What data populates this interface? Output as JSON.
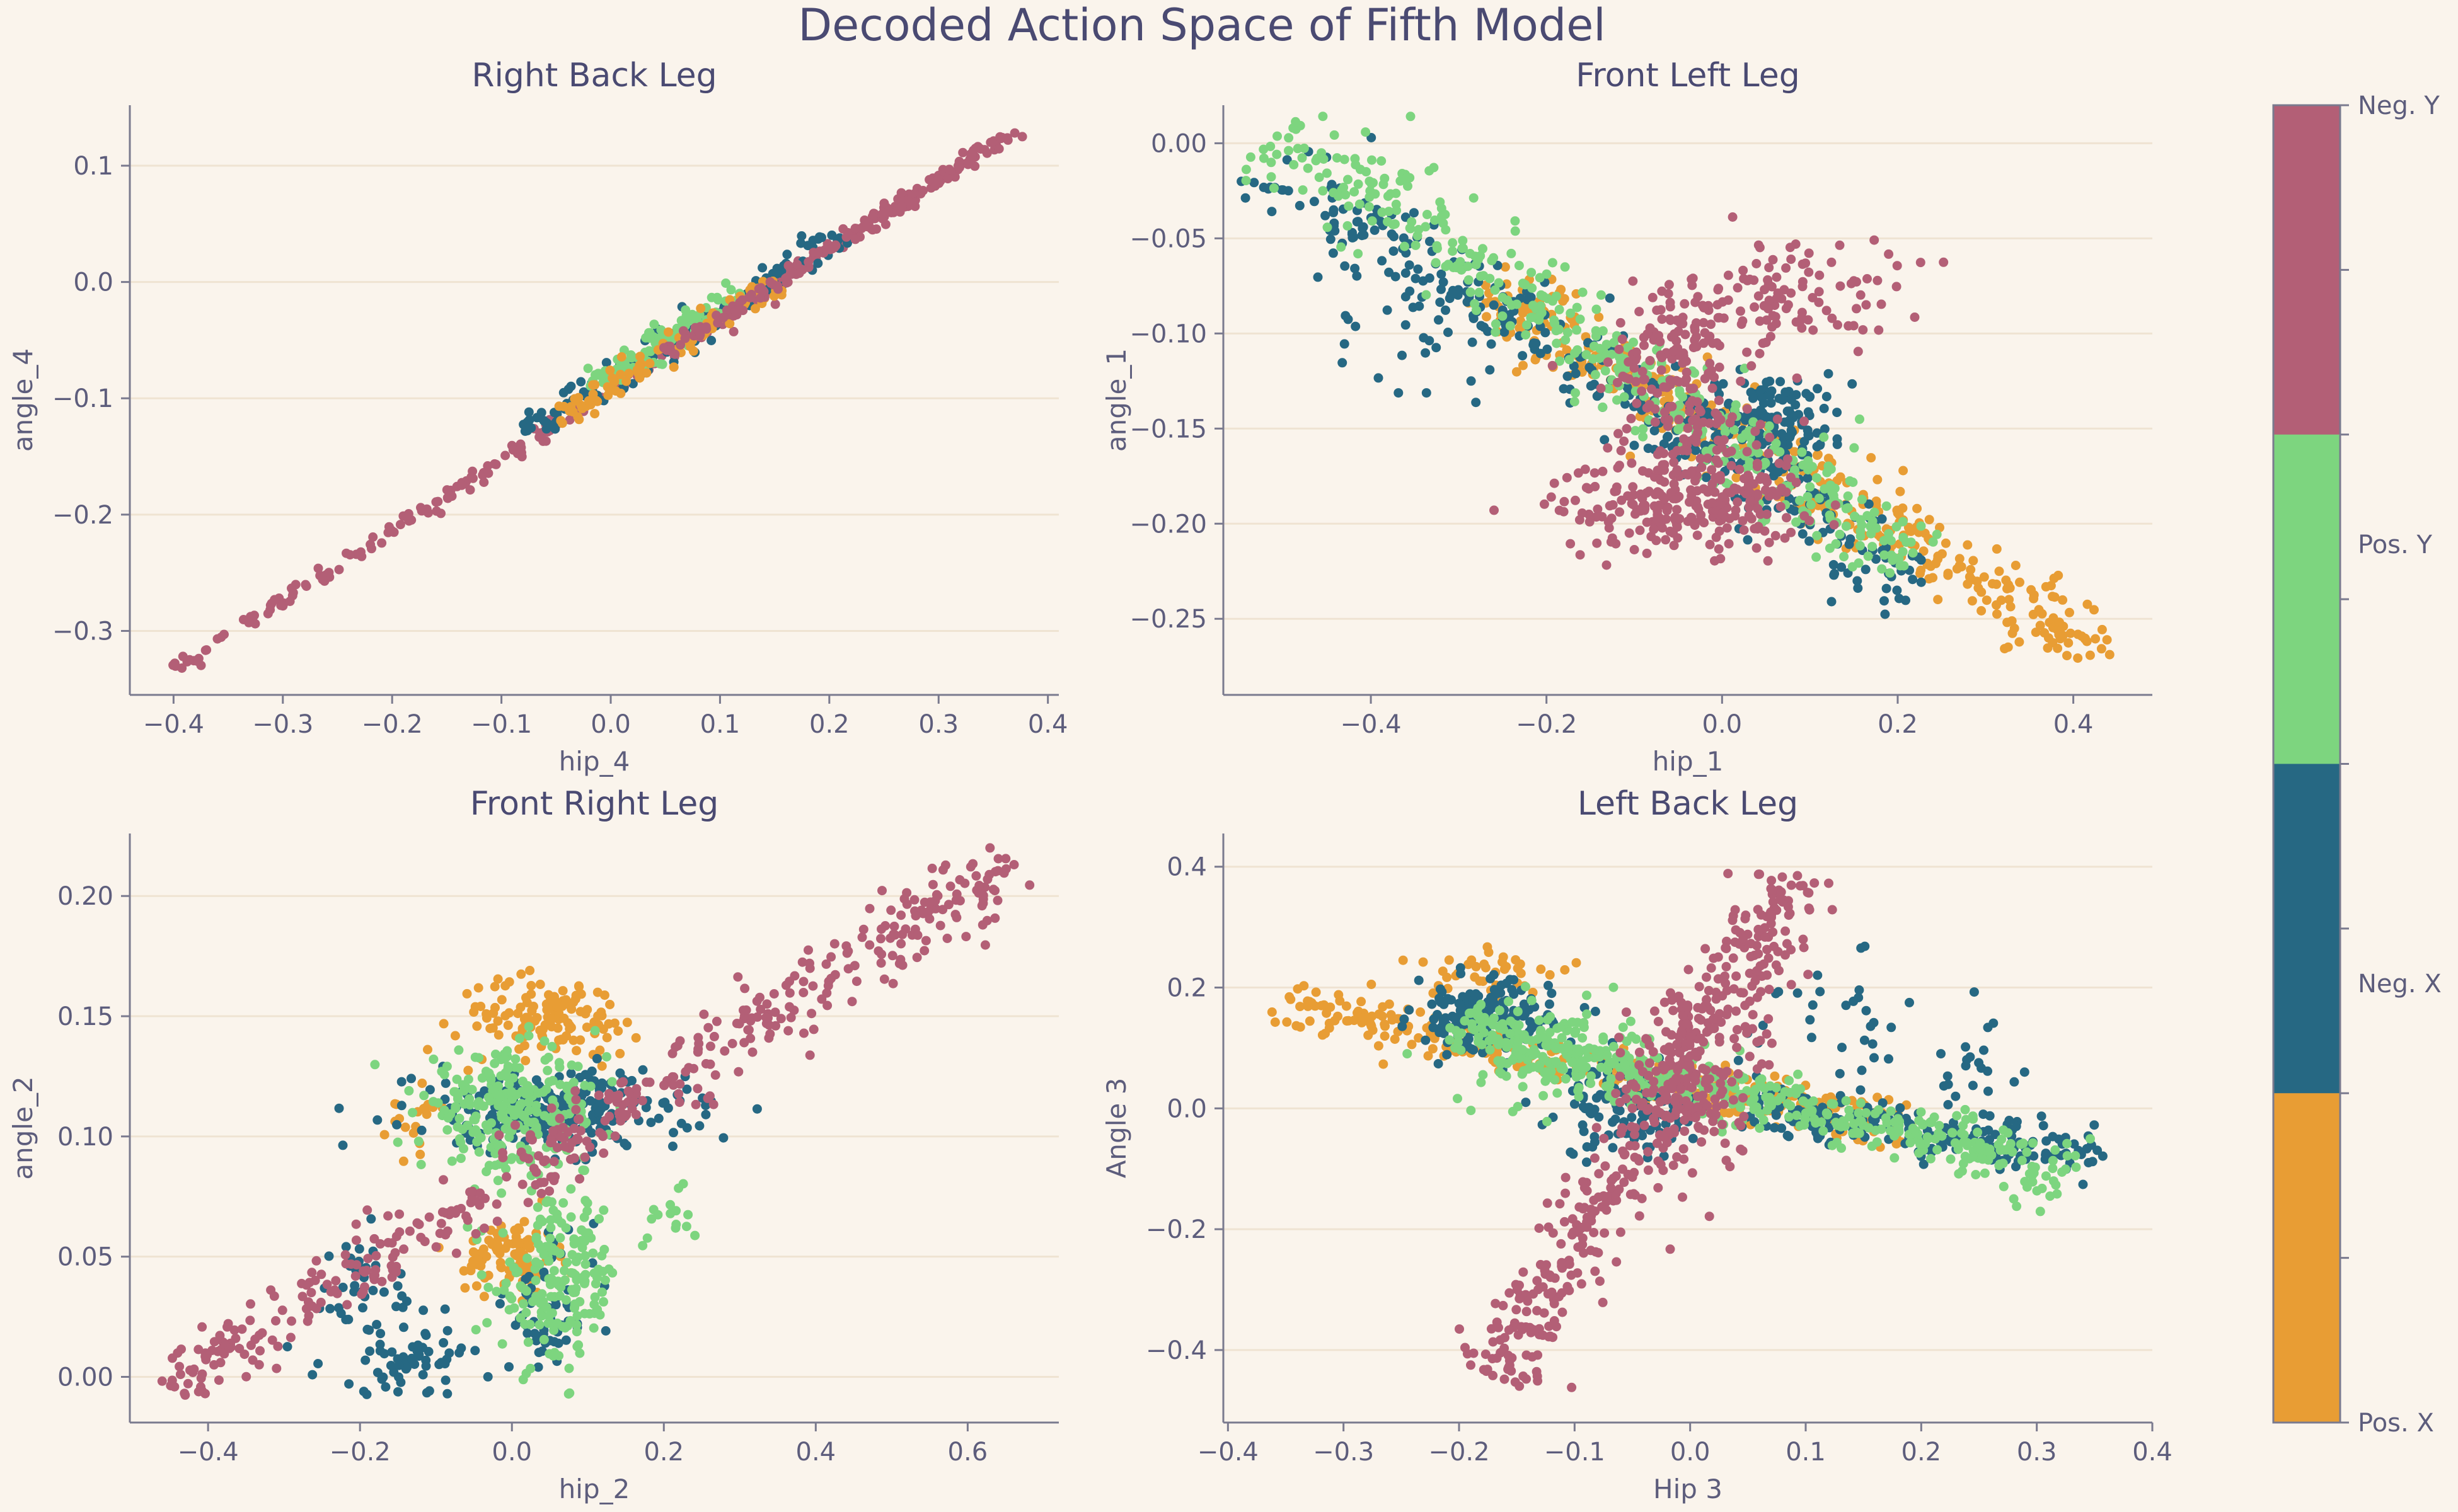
{
  "figure": {
    "title": "Decoded Action Space of Fifth Model"
  },
  "colors": {
    "Neg. Y": "#b35f76",
    "Pos. Y": "#7dd57f",
    "Neg. X": "#266883",
    "Pos. X": "#e89d34",
    "background": "#faf4ec",
    "axis": "#7a7a8e",
    "grid": "#efe3d2"
  },
  "colorbar": {
    "labels": [
      "Neg. Y",
      "Pos. Y",
      "Neg. X",
      "Pos. X"
    ],
    "order_top_to_bottom": [
      "Neg. Y",
      "Pos. Y",
      "Neg. X",
      "Pos. X"
    ]
  },
  "chart_data": [
    {
      "type": "scatter",
      "title": "Right Back Leg",
      "xlabel": "hip_4",
      "ylabel": "angle_4",
      "xlim": [
        -0.44,
        0.41
      ],
      "ylim": [
        -0.355,
        0.152
      ],
      "xticks": [
        -0.4,
        -0.3,
        -0.2,
        -0.1,
        0.0,
        0.1,
        0.2,
        0.3,
        0.4
      ],
      "yticks": [
        -0.3,
        -0.2,
        -0.1,
        0.0,
        0.1
      ],
      "xtick_labels": [
        "−0.4",
        "−0.3",
        "−0.2",
        "−0.1",
        "0.0",
        "0.1",
        "0.2",
        "0.3",
        "0.4"
      ],
      "ytick_labels": [
        "−0.3",
        "−0.2",
        "−0.1",
        "0.0",
        "0.1"
      ],
      "grid": "horizontal",
      "series": [
        {
          "name": "Neg. Y",
          "clusters": [
            {
              "type": "line",
              "x0": -0.4,
              "y0": -0.333,
              "x1": 0.35,
              "y1": 0.118,
              "n": 260,
              "spread": 0.003
            }
          ]
        },
        {
          "name": "Neg. X",
          "clusters": [
            {
              "type": "line",
              "x0": -0.08,
              "y0": -0.13,
              "x1": 0.21,
              "y1": 0.04,
              "n": 130,
              "spread": 0.006
            }
          ]
        },
        {
          "name": "Pos. Y",
          "clusters": [
            {
              "type": "line",
              "x0": -0.02,
              "y0": -0.09,
              "x1": 0.12,
              "y1": -0.01,
              "n": 110,
              "spread": 0.006
            }
          ]
        },
        {
          "name": "Pos. X",
          "clusters": [
            {
              "type": "line",
              "x0": -0.05,
              "y0": -0.12,
              "x1": 0.15,
              "y1": 0.0,
              "n": 100,
              "spread": 0.005
            }
          ]
        },
        {
          "name": "Neg. Y",
          "clusters": [
            {
              "type": "line",
              "x0": 0.05,
              "y0": -0.06,
              "x1": 0.37,
              "y1": 0.13,
              "n": 140,
              "spread": 0.003
            }
          ]
        }
      ]
    },
    {
      "type": "scatter",
      "title": "Front Left Leg",
      "xlabel": "hip_1",
      "ylabel": "angle_1",
      "xlim": [
        -0.568,
        0.49
      ],
      "ylim": [
        -0.29,
        0.02
      ],
      "xticks": [
        -0.4,
        -0.2,
        0.0,
        0.2,
        0.4
      ],
      "yticks": [
        -0.25,
        -0.2,
        -0.15,
        -0.1,
        -0.05,
        0.0
      ],
      "xtick_labels": [
        "−0.4",
        "−0.2",
        "0.0",
        "0.2",
        "0.4"
      ],
      "ytick_labels": [
        "−0.25",
        "−0.20",
        "−0.15",
        "−0.10",
        "−0.05",
        "0.00"
      ],
      "grid": "horizontal",
      "series": [
        {
          "name": "Pos. X",
          "clusters": [
            {
              "type": "line",
              "x0": -0.28,
              "y0": -0.075,
              "x1": 0.44,
              "y1": -0.27,
              "n": 380,
              "spread": 0.008
            }
          ]
        },
        {
          "name": "Neg. X",
          "clusters": [
            {
              "type": "line",
              "x0": -0.52,
              "y0": -0.01,
              "x1": 0.23,
              "y1": -0.235,
              "n": 300,
              "spread": 0.01
            },
            {
              "type": "blob",
              "cx": 0.05,
              "cy": -0.145,
              "sx": 0.05,
              "sy": 0.012,
              "n": 160
            },
            {
              "type": "blob",
              "cx": -0.32,
              "cy": -0.09,
              "sx": 0.06,
              "sy": 0.02,
              "n": 40
            }
          ]
        },
        {
          "name": "Pos. Y",
          "clusters": [
            {
              "type": "line",
              "x0": -0.51,
              "y0": 0.005,
              "x1": 0.22,
              "y1": -0.22,
              "n": 420,
              "spread": 0.01
            }
          ]
        },
        {
          "name": "Neg. Y",
          "clusters": [
            {
              "type": "blob",
              "cx": -0.05,
              "cy": -0.19,
              "sx": 0.07,
              "sy": 0.012,
              "n": 220
            },
            {
              "type": "line",
              "x0": -0.1,
              "y0": -0.1,
              "x1": 0.03,
              "y1": -0.19,
              "n": 160,
              "spread": 0.012
            },
            {
              "type": "blob",
              "cx": 0.08,
              "cy": -0.08,
              "sx": 0.06,
              "sy": 0.015,
              "n": 110
            },
            {
              "type": "blob",
              "cx": -0.05,
              "cy": -0.1,
              "sx": 0.04,
              "sy": 0.015,
              "n": 60
            }
          ]
        }
      ]
    },
    {
      "type": "scatter",
      "title": "Front Right Leg",
      "xlabel": "hip_2",
      "ylabel": "angle_2",
      "xlim": [
        -0.503,
        0.72
      ],
      "ylim": [
        -0.019,
        0.226
      ],
      "xticks": [
        -0.4,
        -0.2,
        0.0,
        0.2,
        0.4,
        0.6
      ],
      "yticks": [
        0.0,
        0.05,
        0.1,
        0.15,
        0.2
      ],
      "xtick_labels": [
        "−0.4",
        "−0.2",
        "0.0",
        "0.2",
        "0.4",
        "0.6"
      ],
      "ytick_labels": [
        "0.00",
        "0.05",
        "0.10",
        "0.15",
        "0.20"
      ],
      "grid": "horizontal",
      "series": [
        {
          "name": "Pos. X",
          "clusters": [
            {
              "type": "blob",
              "cx": 0.05,
              "cy": 0.15,
              "sx": 0.06,
              "sy": 0.008,
              "n": 130
            },
            {
              "type": "blob",
              "cx": 0.0,
              "cy": 0.05,
              "sx": 0.03,
              "sy": 0.008,
              "n": 90
            },
            {
              "type": "blob",
              "cx": -0.13,
              "cy": 0.11,
              "sx": 0.02,
              "sy": 0.008,
              "n": 20
            }
          ]
        },
        {
          "name": "Neg. X",
          "clusters": [
            {
              "type": "blob",
              "cx": 0.05,
              "cy": 0.11,
              "sx": 0.09,
              "sy": 0.008,
              "n": 260
            },
            {
              "type": "blob",
              "cx": -0.13,
              "cy": 0.007,
              "sx": 0.06,
              "sy": 0.007,
              "n": 60
            },
            {
              "type": "blob",
              "cx": -0.2,
              "cy": 0.035,
              "sx": 0.05,
              "sy": 0.012,
              "n": 40
            },
            {
              "type": "blob",
              "cx": 0.05,
              "cy": 0.03,
              "sx": 0.03,
              "sy": 0.015,
              "n": 60
            }
          ]
        },
        {
          "name": "Pos. Y",
          "clusters": [
            {
              "type": "blob",
              "cx": 0.0,
              "cy": 0.11,
              "sx": 0.06,
              "sy": 0.012,
              "n": 250
            },
            {
              "type": "blob",
              "cx": 0.06,
              "cy": 0.04,
              "sx": 0.04,
              "sy": 0.018,
              "n": 180
            },
            {
              "type": "blob",
              "cx": 0.2,
              "cy": 0.07,
              "sx": 0.03,
              "sy": 0.008,
              "n": 15
            }
          ]
        },
        {
          "name": "Neg. Y",
          "clusters": [
            {
              "type": "line",
              "x0": -0.45,
              "y0": -0.004,
              "x1": 0.66,
              "y1": 0.214,
              "n": 460,
              "spread": 0.006
            }
          ]
        }
      ]
    },
    {
      "type": "scatter",
      "title": "Left Back Leg",
      "xlabel": "Hip 3",
      "ylabel": "Angle 3",
      "xlim": [
        -0.404,
        0.4
      ],
      "ylim": [
        -0.52,
        0.455
      ],
      "xticks": [
        -0.4,
        -0.3,
        -0.2,
        -0.1,
        0.0,
        0.1,
        0.2,
        0.3,
        0.4
      ],
      "yticks": [
        -0.4,
        -0.2,
        0.0,
        0.2,
        0.4
      ],
      "xtick_labels": [
        "−0.4",
        "−0.3",
        "−0.2",
        "−0.1",
        "0.0",
        "0.1",
        "0.2",
        "0.3",
        "0.4"
      ],
      "ytick_labels": [
        "−0.4",
        "−0.2",
        "0.0",
        "0.2",
        "0.4"
      ],
      "grid": "horizontal",
      "series": [
        {
          "name": "Pos. X",
          "clusters": [
            {
              "type": "line",
              "x0": -0.36,
              "y0": 0.17,
              "x1": 0.2,
              "y1": -0.04,
              "n": 320,
              "spread": 0.02
            },
            {
              "type": "blob",
              "cx": -0.17,
              "cy": 0.23,
              "sx": 0.04,
              "sy": 0.02,
              "n": 40
            }
          ]
        },
        {
          "name": "Neg. X",
          "clusters": [
            {
              "type": "blob",
              "cx": -0.18,
              "cy": 0.15,
              "sx": 0.03,
              "sy": 0.03,
              "n": 160
            },
            {
              "type": "blob",
              "cx": -0.05,
              "cy": 0.0,
              "sx": 0.03,
              "sy": 0.04,
              "n": 130
            },
            {
              "type": "line",
              "x0": 0.05,
              "y0": 0.0,
              "x1": 0.36,
              "y1": -0.08,
              "n": 180,
              "spread": 0.02
            },
            {
              "type": "blob",
              "cx": 0.25,
              "cy": 0.07,
              "sx": 0.03,
              "sy": 0.04,
              "n": 25
            },
            {
              "type": "blob",
              "cx": 0.12,
              "cy": 0.14,
              "sx": 0.04,
              "sy": 0.05,
              "n": 30
            }
          ]
        },
        {
          "name": "Pos. Y",
          "clusters": [
            {
              "type": "line",
              "x0": -0.2,
              "y0": 0.14,
              "x1": 0.33,
              "y1": -0.11,
              "n": 420,
              "spread": 0.025
            },
            {
              "type": "blob",
              "cx": -0.12,
              "cy": 0.09,
              "sx": 0.04,
              "sy": 0.04,
              "n": 120
            }
          ]
        },
        {
          "name": "Neg. Y",
          "clusters": [
            {
              "type": "line",
              "x0": -0.17,
              "y0": -0.45,
              "x1": 0.09,
              "y1": 0.39,
              "n": 420,
              "spread": 0.025
            },
            {
              "type": "blob",
              "cx": 0.0,
              "cy": 0.05,
              "sx": 0.025,
              "sy": 0.08,
              "n": 160
            }
          ]
        }
      ]
    }
  ]
}
